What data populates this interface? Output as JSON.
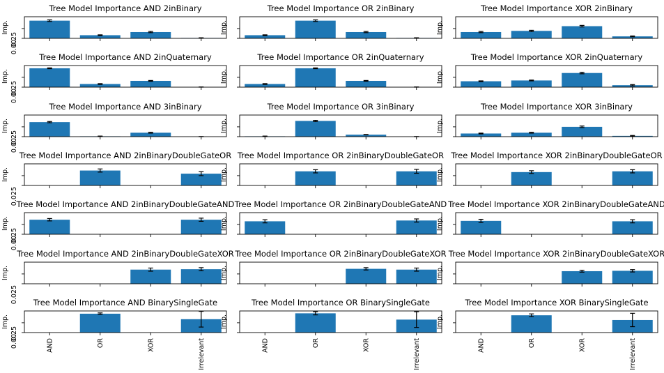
{
  "chart_data": {
    "type": "bar",
    "grid": false,
    "categories": [
      "AND",
      "OR",
      "XOR",
      "Irrelevant"
    ],
    "ylabel": "Imp.",
    "ylim": [
      0,
      0.55
    ],
    "panels": [
      {
        "title": "Tree Model Importance AND 2inBinary",
        "values": [
          0.45,
          0.08,
          0.16,
          0.01
        ],
        "errors": [
          0.02,
          0.01,
          0.015,
          0.005
        ],
        "yticks": [
          "0.00",
          "0.25"
        ]
      },
      {
        "title": "Tree Model Importance OR 2inBinary",
        "values": [
          0.08,
          0.45,
          0.16,
          0.01
        ],
        "errors": [
          0.01,
          0.02,
          0.015,
          0.005
        ],
        "yticks": [
          ""
        ]
      },
      {
        "title": "Tree Model Importance XOR 2inBinary",
        "values": [
          0.16,
          0.19,
          0.31,
          0.05
        ],
        "errors": [
          0.015,
          0.015,
          0.02,
          0.01
        ],
        "yticks": [
          ""
        ]
      },
      {
        "title": "Tree Model Importance AND 2inQuaternary",
        "values": [
          0.48,
          0.08,
          0.16,
          0.0
        ],
        "errors": [
          0.01,
          0.01,
          0.01,
          0.005
        ],
        "yticks": [
          "0.00",
          "0.25"
        ]
      },
      {
        "title": "Tree Model Importance OR 2inQuaternary",
        "values": [
          0.08,
          0.48,
          0.16,
          0.0
        ],
        "errors": [
          0.01,
          0.01,
          0.01,
          0.005
        ],
        "yticks": [
          ""
        ]
      },
      {
        "title": "Tree Model Importance XOR 2inQuaternary",
        "values": [
          0.15,
          0.17,
          0.36,
          0.05
        ],
        "errors": [
          0.01,
          0.01,
          0.02,
          0.015
        ],
        "yticks": [
          ""
        ]
      },
      {
        "title": "Tree Model Importance AND 3inBinary",
        "values": [
          0.37,
          0.01,
          0.1,
          0.0
        ],
        "errors": [
          0.015,
          0.005,
          0.01,
          0.003
        ],
        "yticks": [
          "0.00",
          "0.25"
        ]
      },
      {
        "title": "Tree Model Importance OR 3inBinary",
        "values": [
          0.01,
          0.4,
          0.05,
          0.0
        ],
        "errors": [
          0.005,
          0.015,
          0.005,
          0.003
        ],
        "yticks": [
          ""
        ]
      },
      {
        "title": "Tree Model Importance XOR 3inBinary",
        "values": [
          0.08,
          0.1,
          0.25,
          0.02
        ],
        "errors": [
          0.01,
          0.01,
          0.02,
          0.01
        ],
        "yticks": [
          ""
        ]
      },
      {
        "title": "Tree Model Importance AND 2inBinaryDoubleGateOR",
        "values": [
          0,
          0.38,
          0,
          0.3
        ],
        "errors": [
          0,
          0.04,
          0,
          0.05
        ],
        "yticks": [
          "0.025"
        ]
      },
      {
        "title": "Tree Model Importance OR 2inBinaryDoubleGateOR",
        "values": [
          0,
          0.36,
          0,
          0.36
        ],
        "errors": [
          0,
          0.04,
          0,
          0.05
        ],
        "yticks": [
          ""
        ]
      },
      {
        "title": "Tree Model Importance XOR 2inBinaryDoubleGateOR",
        "values": [
          0,
          0.34,
          0,
          0.36
        ],
        "errors": [
          0,
          0.035,
          0,
          0.04
        ],
        "yticks": [
          ""
        ]
      },
      {
        "title": "Tree Model Importance AND 2inBinaryDoubleGateAND",
        "values": [
          0.37,
          0,
          0,
          0.37
        ],
        "errors": [
          0.03,
          0,
          0,
          0.04
        ],
        "yticks": [
          "0.00",
          "0.25"
        ]
      },
      {
        "title": "Tree Model Importance OR 2inBinaryDoubleGateAND",
        "values": [
          0.33,
          0,
          0,
          0.35
        ],
        "errors": [
          0.04,
          0,
          0,
          0.04
        ],
        "yticks": [
          ""
        ]
      },
      {
        "title": "Tree Model Importance XOR 2inBinaryDoubleGateAND",
        "values": [
          0.34,
          0,
          0,
          0.33
        ],
        "errors": [
          0.04,
          0,
          0,
          0.04
        ],
        "yticks": [
          ""
        ]
      },
      {
        "title": "Tree Model Importance AND 2inBinaryDoubleGateXOR",
        "values": [
          0,
          0,
          0.36,
          0.37
        ],
        "errors": [
          0,
          0,
          0.04,
          0.04
        ],
        "yticks": [
          "0.025"
        ]
      },
      {
        "title": "Tree Model Importance OR 2inBinaryDoubleGateXOR",
        "values": [
          0,
          0,
          0.38,
          0.36
        ],
        "errors": [
          0,
          0,
          0.03,
          0.04
        ],
        "yticks": [
          ""
        ]
      },
      {
        "title": "Tree Model Importance XOR 2inBinaryDoubleGateXOR",
        "values": [
          0,
          0,
          0.32,
          0.33
        ],
        "errors": [
          0,
          0,
          0.025,
          0.03
        ],
        "yticks": [
          ""
        ]
      },
      {
        "title": "Tree Model Importance AND BinarySingleGate",
        "values": [
          0,
          0.48,
          0,
          0.34
        ],
        "errors": [
          0,
          0.02,
          0,
          0.2
        ],
        "yticks": [
          "0.00",
          "0.25"
        ]
      },
      {
        "title": "Tree Model Importance OR BinarySingleGate",
        "values": [
          0,
          0.49,
          0,
          0.33
        ],
        "errors": [
          0,
          0.04,
          0,
          0.2
        ],
        "yticks": [
          ""
        ]
      },
      {
        "title": "Tree Model Importance XOR BinarySingleGate",
        "values": [
          0,
          0.44,
          0,
          0.32
        ],
        "errors": [
          0,
          0.035,
          0,
          0.17
        ],
        "yticks": [
          ""
        ]
      }
    ]
  },
  "colors": {
    "bar": "#1f77b4",
    "axis": "#000000",
    "errorbar": "#000000"
  }
}
